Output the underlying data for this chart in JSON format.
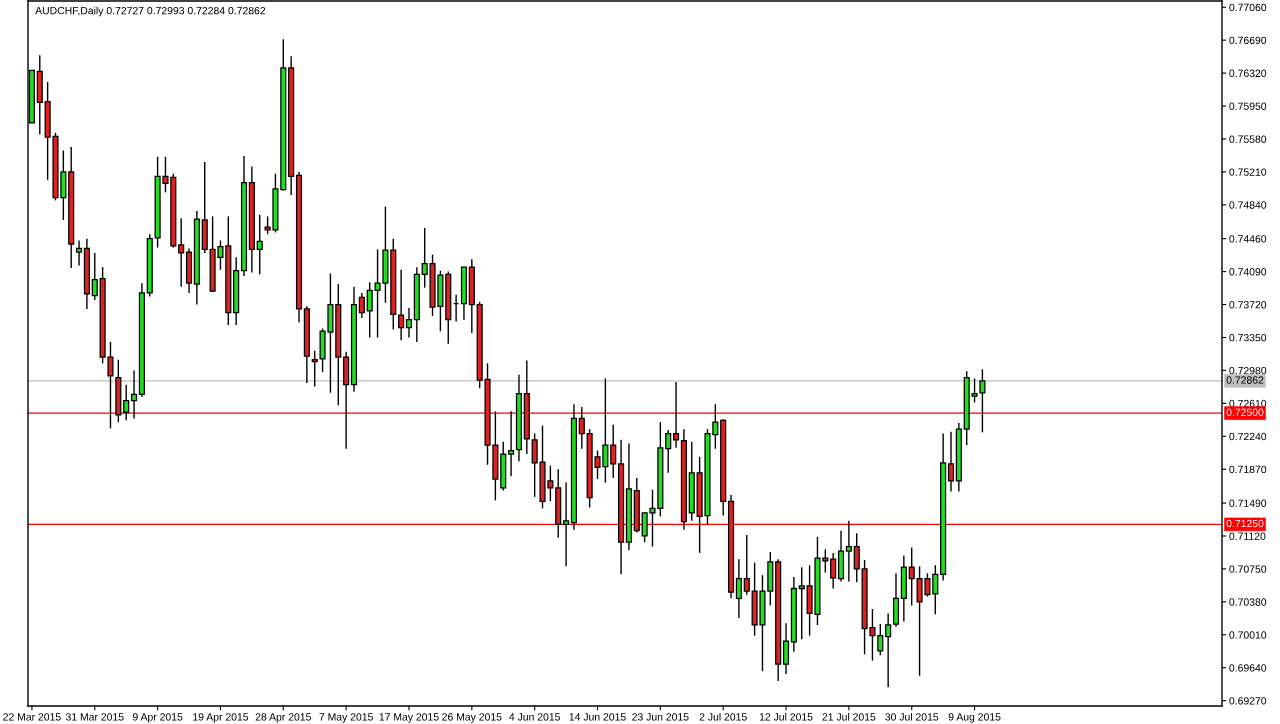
{
  "chart_data": {
    "type": "candlestick",
    "title": "AUDCHF,Daily 0.72727 0.72993 0.72284 0.72862",
    "categories": [
      "22 Mar 2015",
      null,
      null,
      null,
      null,
      null,
      null,
      null,
      "31 Mar 2015",
      null,
      null,
      null,
      null,
      null,
      null,
      null,
      "9 Apr 2015",
      null,
      null,
      null,
      null,
      null,
      null,
      null,
      "19 Apr 2015",
      null,
      null,
      null,
      null,
      null,
      null,
      null,
      "28 Apr 2015",
      null,
      null,
      null,
      null,
      null,
      null,
      null,
      "7 May 2015",
      null,
      null,
      null,
      null,
      null,
      null,
      null,
      "17 May 2015",
      null,
      null,
      null,
      null,
      null,
      null,
      null,
      "26 May 2015",
      null,
      null,
      null,
      null,
      null,
      null,
      null,
      "4 Jun 2015",
      null,
      null,
      null,
      null,
      null,
      null,
      null,
      "14 Jun 2015",
      null,
      null,
      null,
      null,
      null,
      null,
      null,
      "23 Jun 2015",
      null,
      null,
      null,
      null,
      null,
      null,
      null,
      "2 Jul 2015",
      null,
      null,
      null,
      null,
      null,
      null,
      null,
      "12 Jul 2015",
      null,
      null,
      null,
      null,
      null,
      null,
      null,
      "21 Jul 2015",
      null,
      null,
      null,
      null,
      null,
      null,
      null,
      "30 Jul 2015",
      null,
      null,
      null,
      null,
      null,
      null,
      null,
      "9 Aug 2015",
      null,
      null,
      null,
      null,
      null,
      null,
      null,
      null,
      null,
      null,
      null,
      null,
      null,
      null,
      null,
      null,
      null,
      null,
      null,
      null,
      null,
      null,
      null,
      null,
      null,
      null,
      null,
      null,
      null,
      null,
      null
    ],
    "ohlc": [
      [
        0.7576,
        0.7635,
        0.7576,
        0.7635
      ],
      [
        0.7634,
        0.7652,
        0.7563,
        0.7599
      ],
      [
        0.76,
        0.7622,
        0.7512,
        0.756
      ],
      [
        0.7561,
        0.7565,
        0.7489,
        0.7492
      ],
      [
        0.7492,
        0.7545,
        0.7467,
        0.7521
      ],
      [
        0.7521,
        0.7549,
        0.7413,
        0.744
      ],
      [
        0.7431,
        0.7444,
        0.7416,
        0.7435
      ],
      [
        0.7435,
        0.7446,
        0.7367,
        0.7384
      ],
      [
        0.7382,
        0.743,
        0.7377,
        0.74
      ],
      [
        0.7401,
        0.7414,
        0.7306,
        0.7313
      ],
      [
        0.7313,
        0.733,
        0.7233,
        0.7292
      ],
      [
        0.729,
        0.731,
        0.724,
        0.7248
      ],
      [
        0.7251,
        0.7282,
        0.7242,
        0.7264
      ],
      [
        0.7264,
        0.7298,
        0.7244,
        0.7271
      ],
      [
        0.7271,
        0.7396,
        0.7268,
        0.7385
      ],
      [
        0.7385,
        0.7451,
        0.7381,
        0.7446
      ],
      [
        0.7447,
        0.7538,
        0.7436,
        0.7516
      ],
      [
        0.7516,
        0.7538,
        0.7498,
        0.7508
      ],
      [
        0.7515,
        0.7519,
        0.7436,
        0.7438
      ],
      [
        0.7439,
        0.7469,
        0.7392,
        0.743
      ],
      [
        0.7431,
        0.7435,
        0.7385,
        0.7396
      ],
      [
        0.7395,
        0.7477,
        0.7372,
        0.7468
      ],
      [
        0.7467,
        0.7532,
        0.743,
        0.7434
      ],
      [
        0.7434,
        0.7471,
        0.7386,
        0.7387
      ],
      [
        0.7425,
        0.7444,
        0.7411,
        0.7437
      ],
      [
        0.7438,
        0.7471,
        0.7349,
        0.7363
      ],
      [
        0.7363,
        0.7425,
        0.7349,
        0.741
      ],
      [
        0.741,
        0.7539,
        0.7404,
        0.7509
      ],
      [
        0.7509,
        0.7527,
        0.7408,
        0.7434
      ],
      [
        0.7434,
        0.7473,
        0.7406,
        0.7443
      ],
      [
        0.7459,
        0.7471,
        0.7451,
        0.7456
      ],
      [
        0.7456,
        0.7519,
        0.7453,
        0.7502
      ],
      [
        0.7501,
        0.767,
        0.75,
        0.7638
      ],
      [
        0.7638,
        0.7651,
        0.7495,
        0.7516
      ],
      [
        0.7517,
        0.7521,
        0.7352,
        0.7367
      ],
      [
        0.7367,
        0.737,
        0.7284,
        0.7314
      ],
      [
        0.731,
        0.732,
        0.728,
        0.7308
      ],
      [
        0.7311,
        0.7345,
        0.7296,
        0.7342
      ],
      [
        0.7341,
        0.7407,
        0.7273,
        0.7372
      ],
      [
        0.7372,
        0.7395,
        0.7259,
        0.7313
      ],
      [
        0.7313,
        0.7319,
        0.721,
        0.7282
      ],
      [
        0.7282,
        0.7392,
        0.7274,
        0.7372
      ],
      [
        0.738,
        0.7385,
        0.7357,
        0.7363
      ],
      [
        0.7365,
        0.7397,
        0.7335,
        0.7388
      ],
      [
        0.7388,
        0.7434,
        0.7335,
        0.7396
      ],
      [
        0.7396,
        0.7482,
        0.7374,
        0.7433
      ],
      [
        0.7433,
        0.7446,
        0.7344,
        0.7361
      ],
      [
        0.736,
        0.7411,
        0.7332,
        0.7346
      ],
      [
        0.7346,
        0.7368,
        0.7335,
        0.7355
      ],
      [
        0.7355,
        0.7414,
        0.733,
        0.7406
      ],
      [
        0.7406,
        0.7458,
        0.7391,
        0.7418
      ],
      [
        0.7418,
        0.7428,
        0.7359,
        0.7369
      ],
      [
        0.737,
        0.741,
        0.7342,
        0.7405
      ],
      [
        0.7406,
        0.7409,
        0.7328,
        0.7355
      ],
      [
        0.7373,
        0.7383,
        0.7353,
        0.7373
      ],
      [
        0.7373,
        0.7414,
        0.7355,
        0.7414
      ],
      [
        0.7414,
        0.7423,
        0.734,
        0.7372
      ],
      [
        0.7372,
        0.7375,
        0.7278,
        0.7287
      ],
      [
        0.7288,
        0.7306,
        0.7192,
        0.7214
      ],
      [
        0.7214,
        0.7252,
        0.7152,
        0.7176
      ],
      [
        0.7166,
        0.7218,
        0.7163,
        0.7204
      ],
      [
        0.7204,
        0.7252,
        0.7179,
        0.7208
      ],
      [
        0.7209,
        0.7293,
        0.7196,
        0.7272
      ],
      [
        0.7272,
        0.7309,
        0.7204,
        0.7221
      ],
      [
        0.722,
        0.7227,
        0.7156,
        0.7194
      ],
      [
        0.7195,
        0.7236,
        0.7143,
        0.7151
      ],
      [
        0.7174,
        0.7191,
        0.7151,
        0.7166
      ],
      [
        0.7166,
        0.7187,
        0.711,
        0.7125
      ],
      [
        0.7125,
        0.7172,
        0.7078,
        0.7129
      ],
      [
        0.7127,
        0.726,
        0.7119,
        0.7244
      ],
      [
        0.7244,
        0.7257,
        0.721,
        0.7227
      ],
      [
        0.7227,
        0.7232,
        0.7144,
        0.7155
      ],
      [
        0.7201,
        0.7208,
        0.7176,
        0.7189
      ],
      [
        0.719,
        0.7289,
        0.7172,
        0.7214
      ],
      [
        0.7214,
        0.7237,
        0.7177,
        0.7193
      ],
      [
        0.7193,
        0.722,
        0.7069,
        0.7105
      ],
      [
        0.7105,
        0.7216,
        0.7096,
        0.7165
      ],
      [
        0.7163,
        0.7177,
        0.7116,
        0.7118
      ],
      [
        0.7112,
        0.7138,
        0.7105,
        0.7138
      ],
      [
        0.7138,
        0.7164,
        0.71,
        0.7143
      ],
      [
        0.7143,
        0.724,
        0.7134,
        0.7211
      ],
      [
        0.721,
        0.7231,
        0.7183,
        0.7227
      ],
      [
        0.7227,
        0.7285,
        0.7211,
        0.722
      ],
      [
        0.7219,
        0.7232,
        0.7119,
        0.7128
      ],
      [
        0.7138,
        0.7218,
        0.7129,
        0.7183
      ],
      [
        0.7183,
        0.7201,
        0.7093,
        0.7134
      ],
      [
        0.7135,
        0.7232,
        0.7125,
        0.7227
      ],
      [
        0.7226,
        0.726,
        0.721,
        0.724
      ],
      [
        0.7242,
        0.7243,
        0.7135,
        0.7151
      ],
      [
        0.7151,
        0.7158,
        0.7042,
        0.7049
      ],
      [
        0.7042,
        0.7086,
        0.702,
        0.7064
      ],
      [
        0.7064,
        0.7113,
        0.7046,
        0.705
      ],
      [
        0.705,
        0.7082,
        0.7,
        0.7012
      ],
      [
        0.7012,
        0.7068,
        0.696,
        0.705
      ],
      [
        0.705,
        0.7094,
        0.7034,
        0.7083
      ],
      [
        0.7083,
        0.7086,
        0.6949,
        0.6968
      ],
      [
        0.6968,
        0.7014,
        0.6957,
        0.6994
      ],
      [
        0.6993,
        0.7066,
        0.6982,
        0.7053
      ],
      [
        0.7053,
        0.7077,
        0.6996,
        0.7056
      ],
      [
        0.7056,
        0.7079,
        0.7,
        0.7025
      ],
      [
        0.7024,
        0.7111,
        0.7012,
        0.7087
      ],
      [
        0.7087,
        0.7097,
        0.7071,
        0.7084
      ],
      [
        0.7086,
        0.7093,
        0.7053,
        0.7065
      ],
      [
        0.7064,
        0.7118,
        0.7061,
        0.7095
      ],
      [
        0.7095,
        0.7129,
        0.7061,
        0.71
      ],
      [
        0.71,
        0.7115,
        0.706,
        0.7075
      ],
      [
        0.7075,
        0.7085,
        0.6979,
        0.7008
      ],
      [
        0.7009,
        0.703,
        0.6972,
        0.7
      ],
      [
        0.6983,
        0.7013,
        0.6978,
        0.7
      ],
      [
        0.6999,
        0.7025,
        0.6942,
        0.7012
      ],
      [
        0.7013,
        0.707,
        0.701,
        0.7042
      ],
      [
        0.7042,
        0.709,
        0.7016,
        0.7077
      ],
      [
        0.7077,
        0.7099,
        0.7034,
        0.7064
      ],
      [
        0.7064,
        0.7078,
        0.6955,
        0.7038
      ],
      [
        0.7064,
        0.707,
        0.7044,
        0.7046
      ],
      [
        0.7047,
        0.7079,
        0.7024,
        0.7069
      ],
      [
        0.7069,
        0.7227,
        0.7062,
        0.7194
      ],
      [
        0.7193,
        0.7229,
        0.7162,
        0.7174
      ],
      [
        0.7174,
        0.7239,
        0.7162,
        0.7232
      ],
      [
        0.7232,
        0.7297,
        0.7214,
        0.729
      ],
      [
        0.7269,
        0.7289,
        0.7262,
        0.7272
      ],
      [
        0.72727,
        0.72993,
        0.72284,
        0.72862
      ],
      null,
      null,
      null,
      null,
      null,
      null,
      null,
      null,
      null,
      null,
      null,
      null,
      null,
      null,
      null,
      null,
      null,
      null,
      null,
      null,
      null,
      null,
      null,
      null,
      null,
      null,
      null,
      null,
      null,
      null
    ],
    "colors": [
      "#22dd22",
      "#dd2222",
      "#dd2222",
      "#dd2222",
      "#22dd22",
      "#dd2222",
      "#22dd22",
      "#dd2222",
      "#22dd22",
      "#dd2222",
      "#dd2222",
      "#dd2222",
      "#22dd22",
      "#22dd22",
      "#22dd22",
      "#22dd22",
      "#22dd22",
      "#dd2222",
      "#dd2222",
      "#dd2222",
      "#dd2222",
      "#22dd22",
      "#dd2222",
      "#dd2222",
      "#22dd22",
      "#dd2222",
      "#22dd22",
      "#22dd22",
      "#dd2222",
      "#22dd22",
      "#dd2222",
      "#22dd22",
      "#22dd22",
      "#dd2222",
      "#dd2222",
      "#dd2222",
      "#dd2222",
      "#22dd22",
      "#22dd22",
      "#dd2222",
      "#dd2222",
      "#22dd22",
      "#dd2222",
      "#22dd22",
      "#22dd22",
      "#22dd22",
      "#dd2222",
      "#dd2222",
      "#22dd22",
      "#22dd22",
      "#22dd22",
      "#dd2222",
      "#22dd22",
      "#dd2222",
      "#000000",
      "#22dd22",
      "#dd2222",
      "#dd2222",
      "#dd2222",
      "#dd2222",
      "#22dd22",
      "#22dd22",
      "#22dd22",
      "#dd2222",
      "#dd2222",
      "#dd2222",
      "#dd2222",
      "#dd2222",
      "#22dd22",
      "#22dd22",
      "#dd2222",
      "#dd2222",
      "#dd2222",
      "#22dd22",
      "#dd2222",
      "#dd2222",
      "#22dd22",
      "#dd2222",
      "#22dd22",
      "#22dd22",
      "#22dd22",
      "#22dd22",
      "#dd2222",
      "#dd2222",
      "#22dd22",
      "#dd2222",
      "#22dd22",
      "#22dd22",
      "#dd2222",
      "#dd2222",
      "#22dd22",
      "#dd2222",
      "#dd2222",
      "#22dd22",
      "#22dd22",
      "#dd2222",
      "#22dd22",
      "#22dd22",
      "#22dd22",
      "#dd2222",
      "#22dd22",
      "#dd2222",
      "#dd2222",
      "#22dd22",
      "#22dd22",
      "#dd2222",
      "#dd2222",
      "#dd2222",
      "#22dd22",
      "#22dd22",
      "#22dd22",
      "#22dd22",
      "#dd2222",
      "#dd2222",
      "#dd2222",
      "#22dd22",
      "#22dd22",
      "#dd2222",
      "#22dd22",
      "#22dd22",
      "#22dd22",
      "#22dd22",
      null,
      null,
      null,
      null,
      null,
      null,
      null,
      null,
      null,
      null,
      null,
      null,
      null,
      null,
      null,
      null,
      null,
      null,
      null,
      null,
      null,
      null,
      null,
      null,
      null,
      null,
      null,
      null,
      null,
      null
    ],
    "ylim": [
      0.6921,
      0.7713
    ],
    "yticks": [
      {
        "value": 0.7706,
        "label": "0.77060"
      },
      {
        "value": 0.7669,
        "label": "0.76690"
      },
      {
        "value": 0.7632,
        "label": "0.76320"
      },
      {
        "value": 0.7595,
        "label": "0.75950"
      },
      {
        "value": 0.7558,
        "label": "0.75580"
      },
      {
        "value": 0.7521,
        "label": "0.75210"
      },
      {
        "value": 0.7484,
        "label": "0.74840"
      },
      {
        "value": 0.7446,
        "label": "0.74460"
      },
      {
        "value": 0.7409,
        "label": "0.74090"
      },
      {
        "value": 0.7372,
        "label": "0.73720"
      },
      {
        "value": 0.7335,
        "label": "0.73350"
      },
      {
        "value": 0.7298,
        "label": "0.72980"
      },
      {
        "value": 0.7261,
        "label": "0.72610"
      },
      {
        "value": 0.7224,
        "label": "0.72240"
      },
      {
        "value": 0.7187,
        "label": "0.71870"
      },
      {
        "value": 0.7149,
        "label": "0.71490"
      },
      {
        "value": 0.7112,
        "label": "0.71120"
      },
      {
        "value": 0.7075,
        "label": "0.70750"
      },
      {
        "value": 0.7038,
        "label": "0.70380"
      },
      {
        "value": 0.7001,
        "label": "0.70010"
      },
      {
        "value": 0.6964,
        "label": "0.69640"
      },
      {
        "value": 0.6927,
        "label": "0.69270"
      }
    ],
    "ref_lines": [
      {
        "axis": "y",
        "value": 0.72862,
        "label": "0.72862",
        "color": "#c0c0c0"
      },
      {
        "axis": "y",
        "value": 0.725,
        "label": "0.72500",
        "color": "#ff0000"
      },
      {
        "axis": "y",
        "value": 0.7125,
        "label": "0.71250",
        "color": "#ff0000"
      }
    ]
  }
}
